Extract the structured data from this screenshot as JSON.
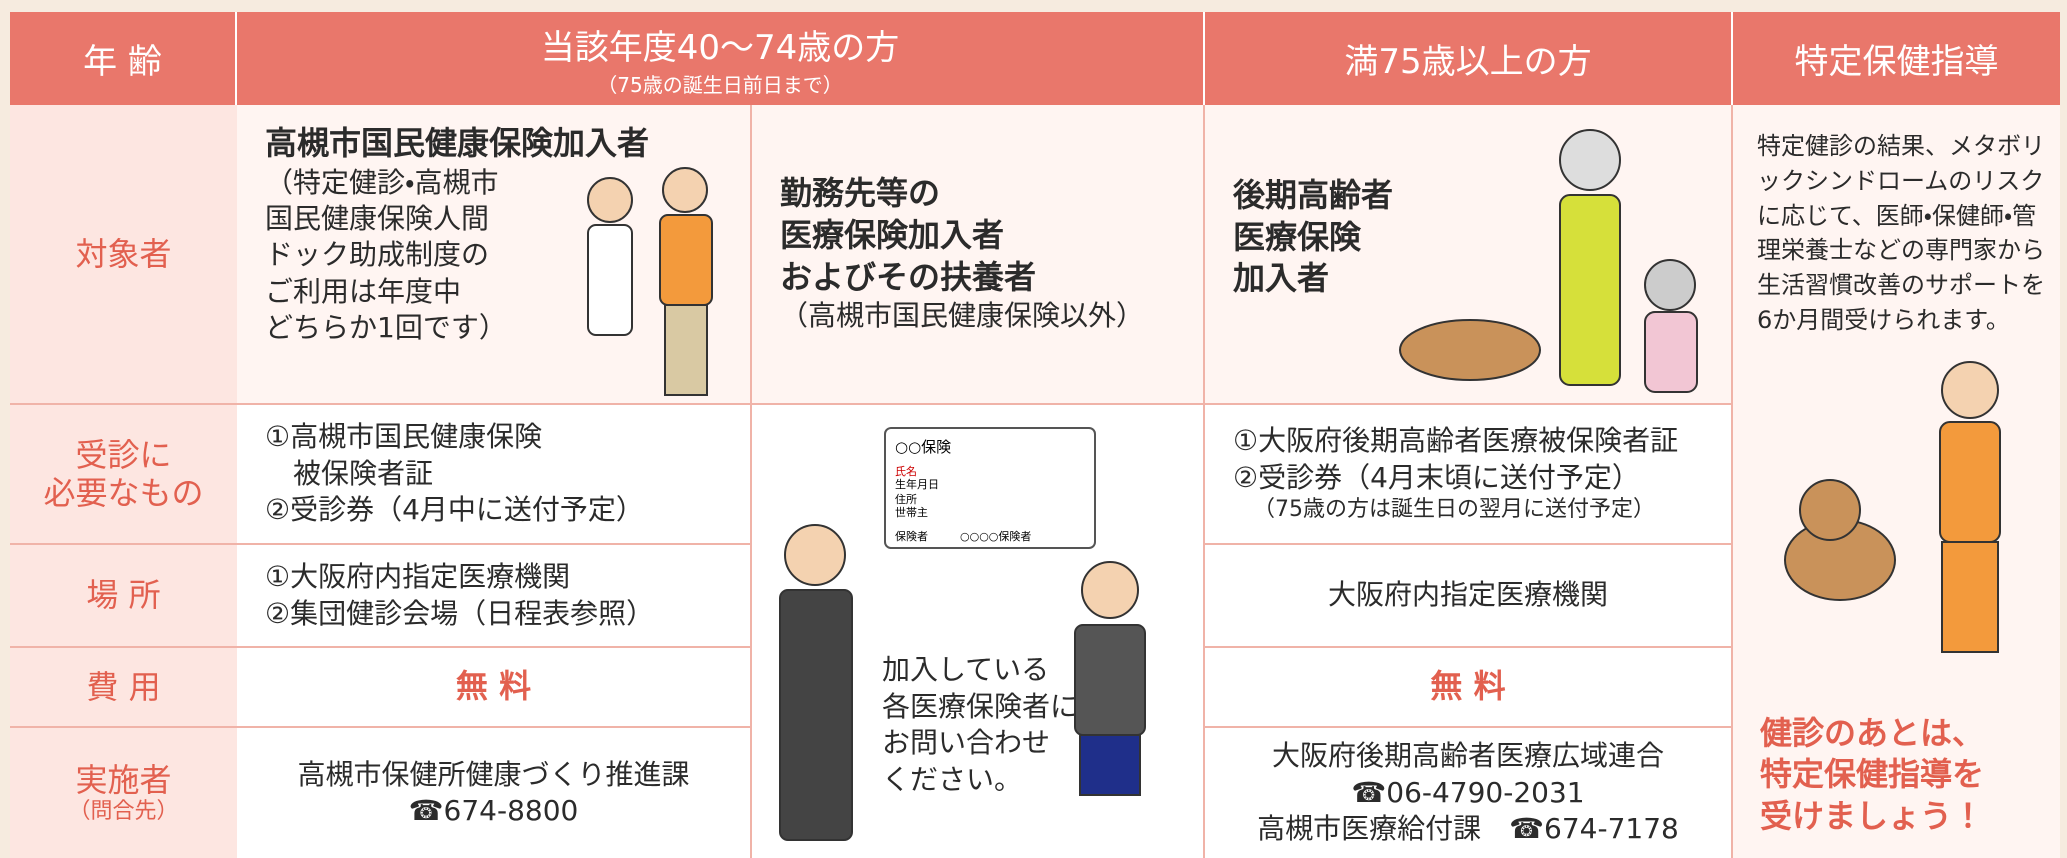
{
  "header": {
    "age": "年 齢",
    "young": "当該年度40～74歳の方",
    "young_note": "（75歳の誕生日前日まで）",
    "elderly": "満75歳以上の方",
    "guidance": "特定保健指導"
  },
  "row_labels": {
    "target": "対象者",
    "required": "受診に\n必要なもの",
    "place": "場 所",
    "cost": "費 用",
    "provider": "実施者",
    "provider_note": "（問合先）"
  },
  "target": {
    "kokuho_title": "高槻市国民健康保険加入者",
    "kokuho_note": "（特定健診・高槻市\n国民健康保険人間\nドック助成制度の\nご利用は年度中\nどちらか1回です）",
    "other": "勤務先等の\n医療保険加入者\nおよびその扶養者",
    "other_note": "（高槻市国民健康保険以外）",
    "elderly": "後期高齢者\n医療保険\n加入者"
  },
  "required": {
    "kokuho": "①高槻市国民健康保険\n　被保険者証\n②受診券（4月中に送付予定）",
    "elderly": "①大阪府後期高齢者医療被保険者証\n②受診券（4月末頃に送付予定）",
    "elderly_note": "（75歳の方は誕生日の翌月に送付予定）"
  },
  "place": {
    "kokuho": "①大阪府内指定医療機関\n②集団健診会場（日程表参照）",
    "elderly": "大阪府内指定医療機関"
  },
  "cost": {
    "kokuho": "無 料",
    "elderly": "無 料"
  },
  "provider": {
    "kokuho": "高槻市保健所健康づくり推進課",
    "kokuho_tel": "☎674-8800",
    "elderly": "大阪府後期高齢者医療広域連合",
    "elderly_tel": "☎06-4790-2031",
    "elderly_city": "高槻市医療給付課　☎674-7178"
  },
  "other_inquiry": "加入している\n各医療保険者に\nお問い合わせ\nください。",
  "card": {
    "title": "○○保険",
    "name": "氏名",
    "birth": "生年月日",
    "address": "住所",
    "householder": "世帯主",
    "issuer": "保険者",
    "insurer": "○○○○保険者"
  },
  "guidance": {
    "text": "特定健診の結果、メタボリックシンドロームのリスクに応じて、医師・保健師・管理栄養士などの専門家から生活習慣改善のサポートを6か月間受けられます。",
    "callout": "健診のあとは、\n特定保健指導を\n受けましょう！"
  }
}
